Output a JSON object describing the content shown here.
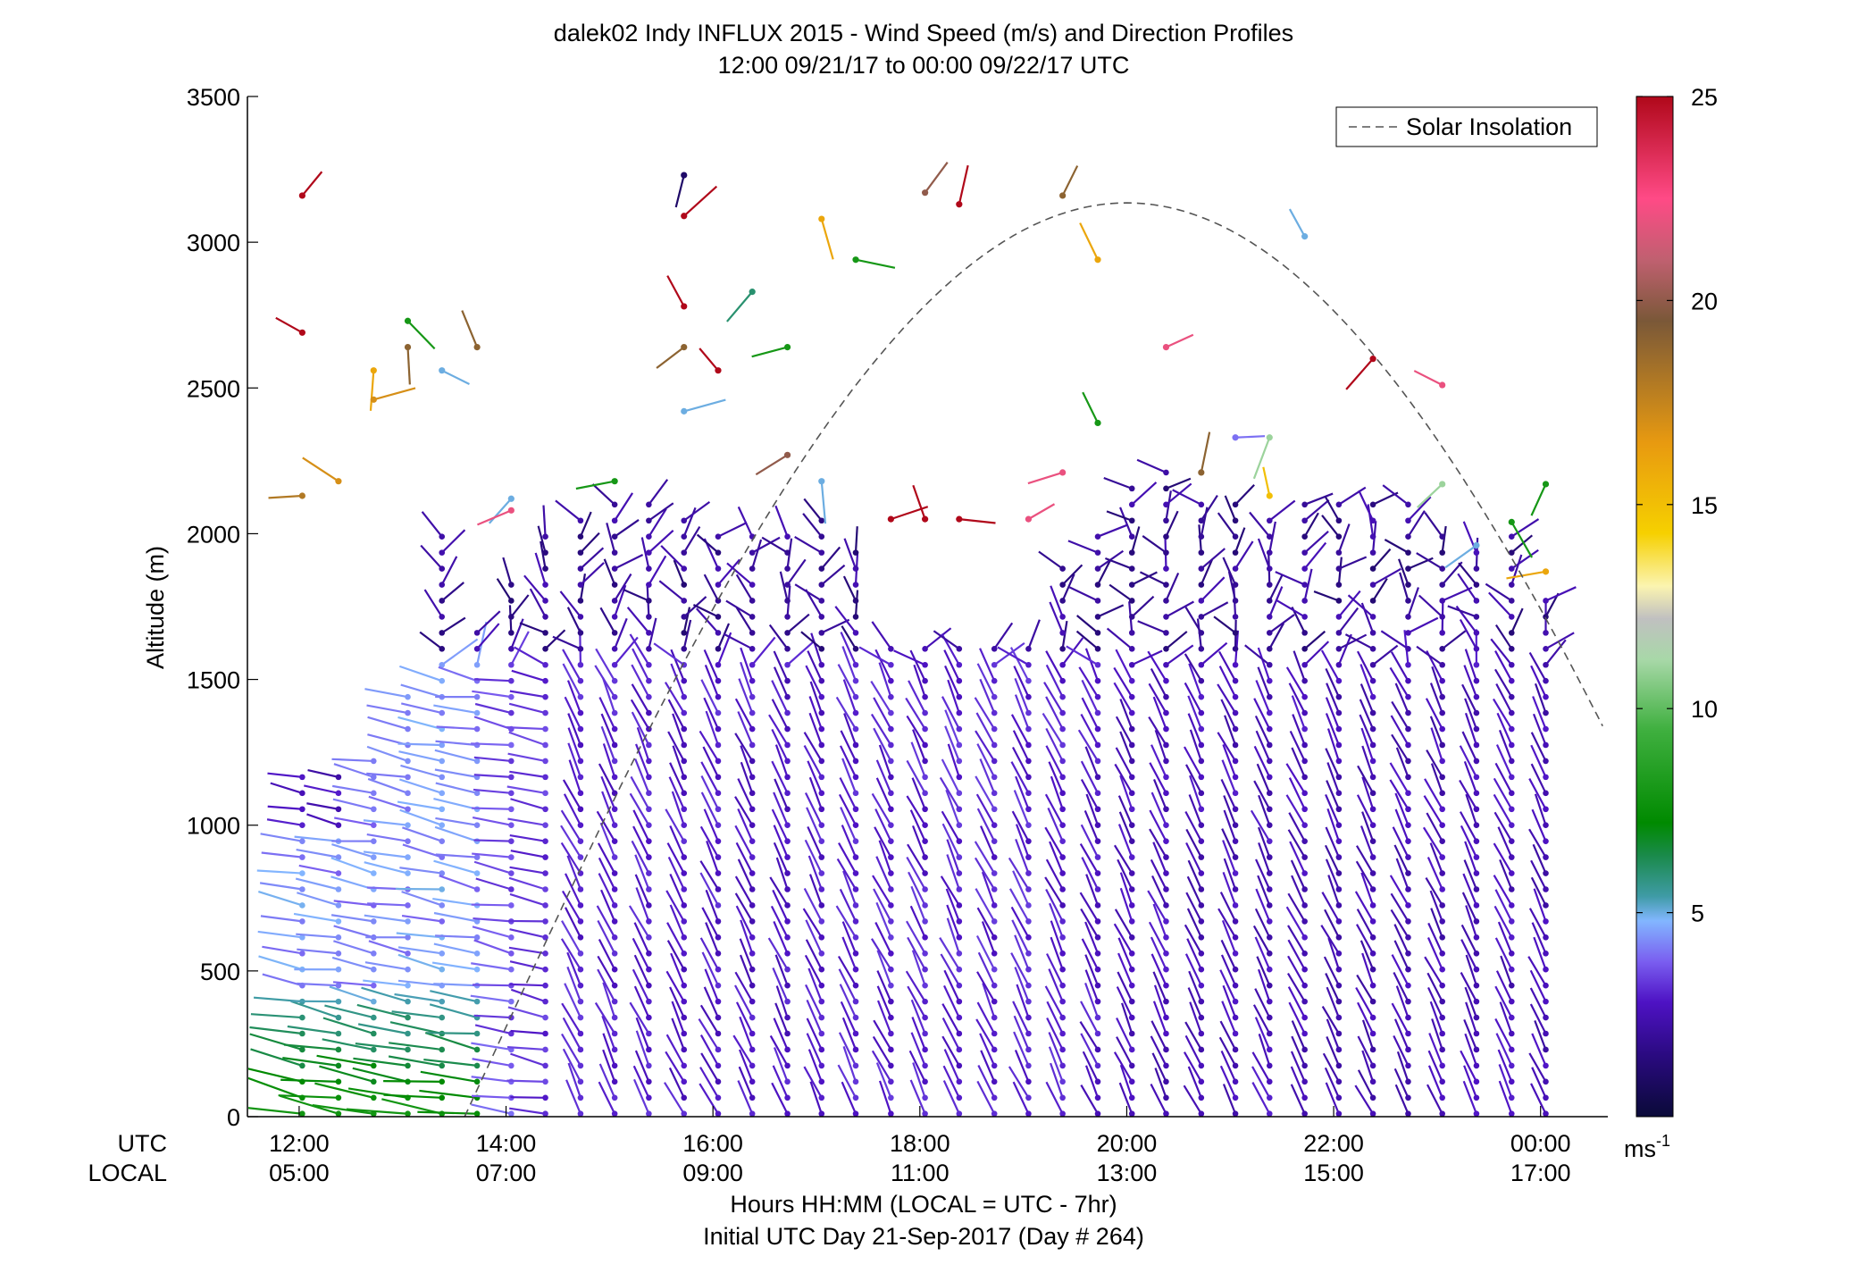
{
  "chart_data": {
    "type": "scatter",
    "title": "dalek02 Indy INFLUX 2015 - Wind Speed (m/s) and Direction Profiles",
    "subtitle": "12:00 09/21/17 to 00:00 09/22/17  UTC",
    "ylabel": "Altitude (m)",
    "xlabel": "Hours HH:MM  (LOCAL = UTC - 7hr)",
    "xlabel2": "Initial UTC Day 21-Sep-2017 (Day # 264)",
    "xlim": [
      11.5,
      24.65
    ],
    "ylim": [
      0,
      3500
    ],
    "x_ticks": [
      {
        "x": 12,
        "utc": "12:00",
        "local": "05:00"
      },
      {
        "x": 14,
        "utc": "14:00",
        "local": "07:00"
      },
      {
        "x": 16,
        "utc": "16:00",
        "local": "09:00"
      },
      {
        "x": 18,
        "utc": "18:00",
        "local": "11:00"
      },
      {
        "x": 20,
        "utc": "20:00",
        "local": "13:00"
      },
      {
        "x": 22,
        "utc": "22:00",
        "local": "15:00"
      },
      {
        "x": 24,
        "utc": "00:00",
        "local": "17:00"
      }
    ],
    "y_ticks": [
      0,
      500,
      1000,
      1500,
      2000,
      2500,
      3000,
      3500
    ],
    "row_labels": {
      "utc": "UTC",
      "local": "LOCAL"
    },
    "legend": {
      "label": "Solar Insolation",
      "position": "top-right"
    },
    "colorbar": {
      "min": 0,
      "max": 25,
      "ticks": [
        5,
        10,
        15,
        20,
        25
      ],
      "unit_base": "ms",
      "unit_exp": "-1",
      "stops": [
        {
          "v": 0,
          "c": "#0a0a38"
        },
        {
          "v": 1.5,
          "c": "#2a0a80"
        },
        {
          "v": 2.8,
          "c": "#4e12c4"
        },
        {
          "v": 3.8,
          "c": "#7a5ef0"
        },
        {
          "v": 4.8,
          "c": "#82b6ff"
        },
        {
          "v": 5.4,
          "c": "#3f9ba6"
        },
        {
          "v": 6.4,
          "c": "#1a8a4a"
        },
        {
          "v": 7.2,
          "c": "#008a00"
        },
        {
          "v": 9.5,
          "c": "#40b040"
        },
        {
          "v": 11.2,
          "c": "#a8d8a8"
        },
        {
          "v": 12.2,
          "c": "#c0c0c0"
        },
        {
          "v": 13.0,
          "c": "#fbf4b0"
        },
        {
          "v": 14.3,
          "c": "#f6d000"
        },
        {
          "v": 16.5,
          "c": "#e89a10"
        },
        {
          "v": 19.5,
          "c": "#7a5838"
        },
        {
          "v": 21.0,
          "c": "#c06070"
        },
        {
          "v": 22.5,
          "c": "#ff4a86"
        },
        {
          "v": 25.0,
          "c": "#b0081a"
        }
      ]
    },
    "solar_insolation_peak": {
      "x": 20.0,
      "y": 3135
    },
    "profiles": [
      {
        "t": 12.03,
        "top": 1170,
        "speed": 2.6
      },
      {
        "t": 12.38,
        "top": 1210,
        "speed": 2.6
      },
      {
        "t": 12.72,
        "top": 1250,
        "speed": 4.0
      },
      {
        "t": 13.05,
        "top": 1470,
        "speed": 4.3
      },
      {
        "t": 13.38,
        "top": 1990,
        "speed": 4.5
      },
      {
        "t": 13.72,
        "top": 1690,
        "speed": 4.3
      },
      {
        "t": 14.05,
        "top": 1850,
        "speed": 3.6
      },
      {
        "t": 14.38,
        "top": 2020,
        "speed": 3.2
      },
      {
        "t": 14.72,
        "top": 2090,
        "speed": 3.0
      },
      {
        "t": 15.05,
        "top": 2140,
        "speed": 2.9
      },
      {
        "t": 15.38,
        "top": 2120,
        "speed": 2.9
      },
      {
        "t": 15.72,
        "top": 2060,
        "speed": 2.9
      },
      {
        "t": 16.05,
        "top": 2000,
        "speed": 2.9
      },
      {
        "t": 16.38,
        "top": 2040,
        "speed": 2.8
      },
      {
        "t": 16.72,
        "top": 2010,
        "speed": 2.8
      },
      {
        "t": 17.05,
        "top": 2050,
        "speed": 2.9
      },
      {
        "t": 17.38,
        "top": 1940,
        "speed": 2.9
      },
      {
        "t": 17.72,
        "top": 1640,
        "speed": 3.0
      },
      {
        "t": 18.05,
        "top": 1650,
        "speed": 3.0
      },
      {
        "t": 18.38,
        "top": 1650,
        "speed": 3.0
      },
      {
        "t": 18.72,
        "top": 1650,
        "speed": 3.0
      },
      {
        "t": 19.05,
        "top": 1640,
        "speed": 3.0
      },
      {
        "t": 19.38,
        "top": 1880,
        "speed": 2.9
      },
      {
        "t": 19.72,
        "top": 2040,
        "speed": 2.8
      },
      {
        "t": 20.05,
        "top": 2200,
        "speed": 2.6
      },
      {
        "t": 20.38,
        "top": 2250,
        "speed": 2.6
      },
      {
        "t": 20.72,
        "top": 2140,
        "speed": 2.6
      },
      {
        "t": 21.05,
        "top": 2100,
        "speed": 2.6
      },
      {
        "t": 21.38,
        "top": 2080,
        "speed": 2.6
      },
      {
        "t": 21.72,
        "top": 2120,
        "speed": 2.6
      },
      {
        "t": 22.05,
        "top": 2130,
        "speed": 2.5
      },
      {
        "t": 22.38,
        "top": 2130,
        "speed": 2.5
      },
      {
        "t": 22.72,
        "top": 2130,
        "speed": 2.5
      },
      {
        "t": 23.05,
        "top": 2040,
        "speed": 2.5
      },
      {
        "t": 23.38,
        "top": 1950,
        "speed": 2.6
      },
      {
        "t": 23.72,
        "top": 2000,
        "speed": 2.6
      },
      {
        "t": 24.05,
        "top": 1820,
        "speed": 2.5
      }
    ],
    "scattered_points": [
      {
        "t": 12.03,
        "alt": 3160,
        "speed": 25
      },
      {
        "t": 12.03,
        "alt": 2690,
        "speed": 25
      },
      {
        "t": 12.03,
        "alt": 2130,
        "speed": 18
      },
      {
        "t": 12.38,
        "alt": 2180,
        "speed": 17
      },
      {
        "t": 12.72,
        "alt": 2560,
        "speed": 16
      },
      {
        "t": 12.72,
        "alt": 2460,
        "speed": 17
      },
      {
        "t": 13.05,
        "alt": 2730,
        "speed": 8
      },
      {
        "t": 13.05,
        "alt": 2640,
        "speed": 19
      },
      {
        "t": 13.38,
        "alt": 2560,
        "speed": 5
      },
      {
        "t": 13.72,
        "alt": 2640,
        "speed": 19
      },
      {
        "t": 14.05,
        "alt": 2120,
        "speed": 5
      },
      {
        "t": 14.05,
        "alt": 2080,
        "speed": 22
      },
      {
        "t": 15.05,
        "alt": 2180,
        "speed": 8
      },
      {
        "t": 15.72,
        "alt": 3230,
        "speed": 1
      },
      {
        "t": 15.72,
        "alt": 3090,
        "speed": 25
      },
      {
        "t": 15.72,
        "alt": 2780,
        "speed": 25
      },
      {
        "t": 15.72,
        "alt": 2640,
        "speed": 19
      },
      {
        "t": 16.05,
        "alt": 2560,
        "speed": 25
      },
      {
        "t": 15.72,
        "alt": 2420,
        "speed": 5
      },
      {
        "t": 16.38,
        "alt": 2830,
        "speed": 6
      },
      {
        "t": 16.72,
        "alt": 2640,
        "speed": 8
      },
      {
        "t": 16.72,
        "alt": 2270,
        "speed": 20
      },
      {
        "t": 17.05,
        "alt": 2180,
        "speed": 5
      },
      {
        "t": 17.05,
        "alt": 3080,
        "speed": 16
      },
      {
        "t": 17.38,
        "alt": 2940,
        "speed": 8
      },
      {
        "t": 17.72,
        "alt": 2050,
        "speed": 25
      },
      {
        "t": 18.05,
        "alt": 3170,
        "speed": 20
      },
      {
        "t": 18.05,
        "alt": 2050,
        "speed": 25
      },
      {
        "t": 18.38,
        "alt": 3130,
        "speed": 25
      },
      {
        "t": 18.38,
        "alt": 2050,
        "speed": 25
      },
      {
        "t": 19.05,
        "alt": 2050,
        "speed": 22
      },
      {
        "t": 19.38,
        "alt": 2210,
        "speed": 22
      },
      {
        "t": 19.38,
        "alt": 3160,
        "speed": 19
      },
      {
        "t": 19.72,
        "alt": 2940,
        "speed": 16
      },
      {
        "t": 19.72,
        "alt": 2380,
        "speed": 8
      },
      {
        "t": 20.38,
        "alt": 2640,
        "speed": 22
      },
      {
        "t": 20.72,
        "alt": 2210,
        "speed": 19
      },
      {
        "t": 21.05,
        "alt": 2330,
        "speed": 4
      },
      {
        "t": 21.38,
        "alt": 2330,
        "speed": 11
      },
      {
        "t": 21.38,
        "alt": 2130,
        "speed": 15
      },
      {
        "t": 21.72,
        "alt": 3020,
        "speed": 5
      },
      {
        "t": 22.38,
        "alt": 2600,
        "speed": 25
      },
      {
        "t": 23.05,
        "alt": 2510,
        "speed": 22
      },
      {
        "t": 23.05,
        "alt": 2170,
        "speed": 11
      },
      {
        "t": 23.38,
        "alt": 1960,
        "speed": 5
      },
      {
        "t": 23.72,
        "alt": 2040,
        "speed": 8
      },
      {
        "t": 24.05,
        "alt": 2170,
        "speed": 8
      },
      {
        "t": 24.05,
        "alt": 1870,
        "speed": 16
      }
    ]
  }
}
